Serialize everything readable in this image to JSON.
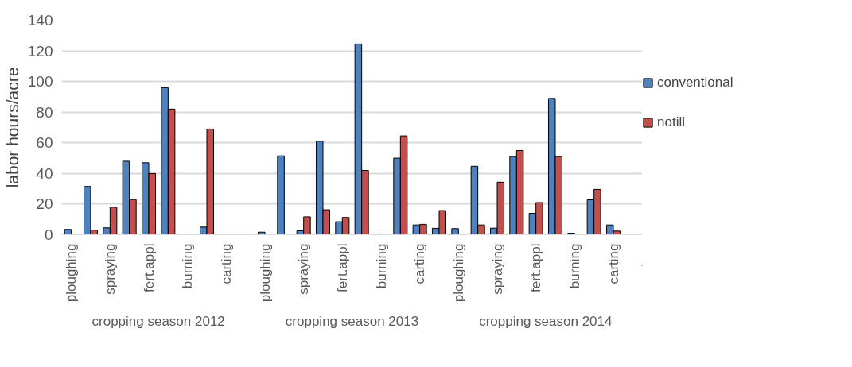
{
  "chart_data": {
    "type": "bar",
    "ylabel": "labor hours/acre",
    "categories": [
      "ploughing",
      null,
      "spraying",
      null,
      "fert.appl",
      null,
      "burning",
      null,
      "carting",
      null,
      "ploughing",
      null,
      "spraying",
      null,
      "fert.appl",
      null,
      "burning",
      null,
      "carting",
      null,
      "ploughing",
      null,
      "spraying",
      null,
      "fert.appl",
      null,
      "burning",
      null,
      "carting",
      null
    ],
    "series": [
      {
        "name": "conventional",
        "color": "#4f81bd",
        "values": [
          3.5,
          31.5,
          4.5,
          48,
          47,
          96,
          null,
          5,
          null,
          null,
          1.7,
          51.5,
          2.6,
          61,
          8.5,
          124.5,
          0.3,
          50,
          6.4,
          4.2,
          4,
          44.7,
          4.3,
          51,
          14,
          89,
          1,
          22.8,
          6.4,
          null
        ]
      },
      {
        "name": "notill",
        "color": "#c0504d",
        "values": [
          null,
          3,
          18,
          23,
          40,
          82,
          null,
          69,
          null,
          null,
          null,
          null,
          11.7,
          16.3,
          11.3,
          42,
          null,
          64.5,
          6.8,
          15.8,
          null,
          6.4,
          34.3,
          55,
          21,
          51,
          null,
          29.6,
          2.4,
          null
        ]
      }
    ],
    "annotations": [
      "cropping season 2012",
      "cropping season 2013",
      "cropping season 2014"
    ],
    "ylim": [
      0,
      140
    ],
    "yticks": [
      0,
      20,
      40,
      60,
      80,
      100,
      120,
      140
    ],
    "grid": "y",
    "legend": "right"
  }
}
